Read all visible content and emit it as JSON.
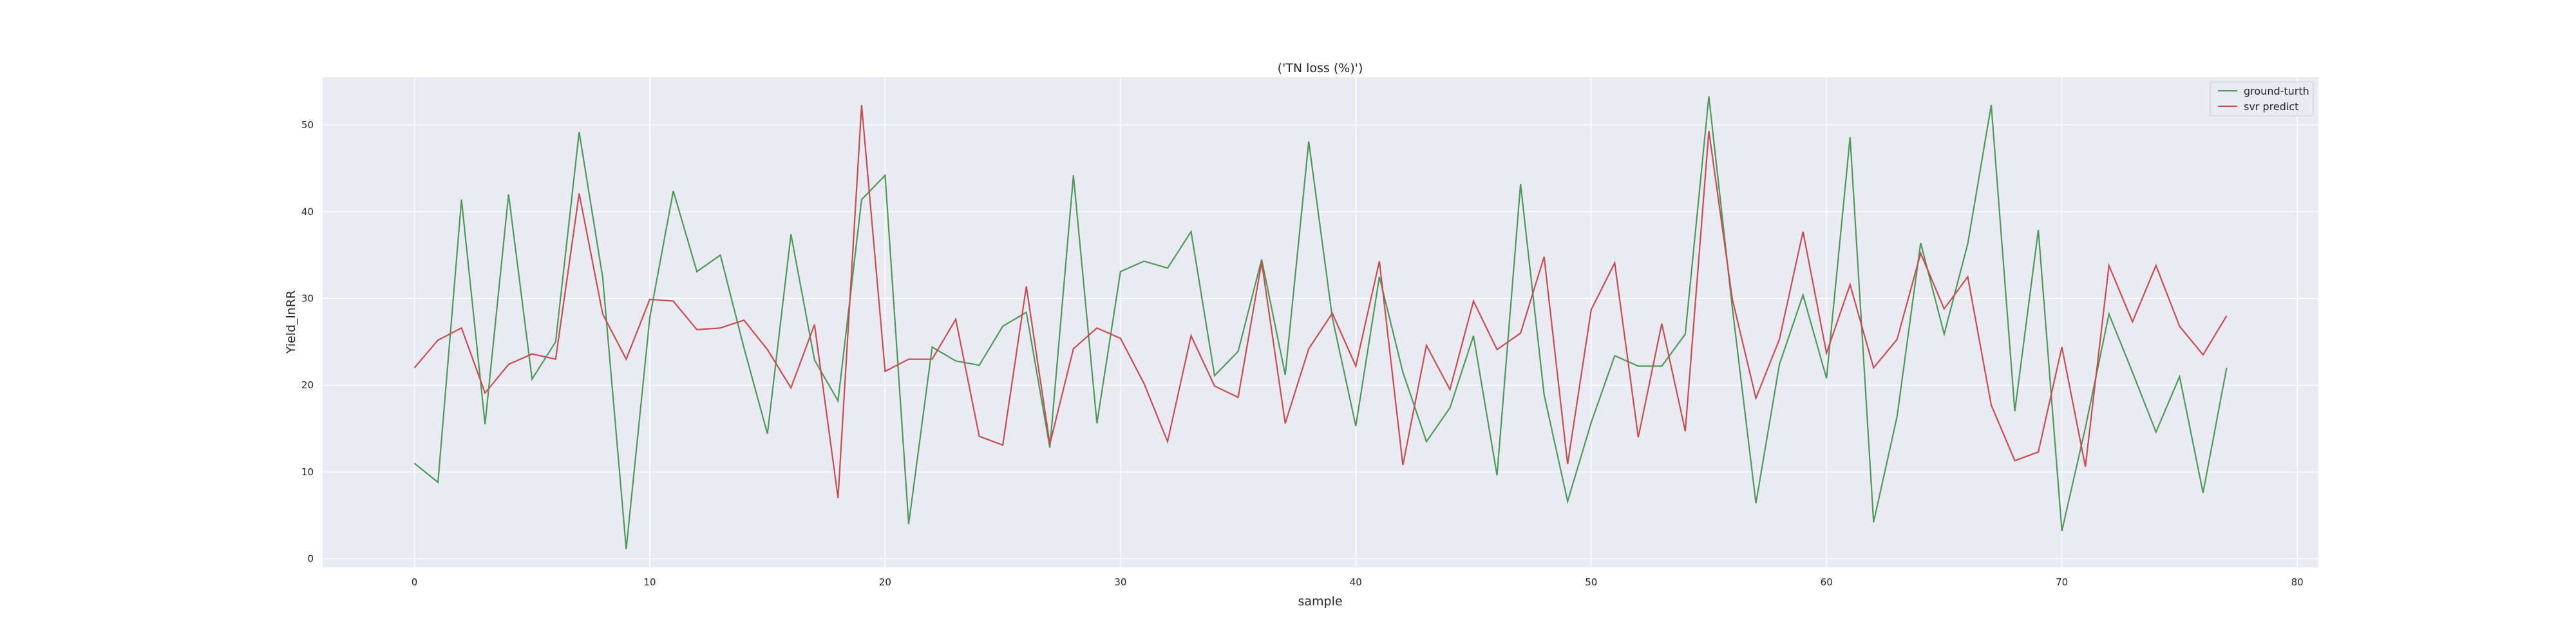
{
  "chart_data": {
    "type": "line",
    "title": "('TN loss (%)')",
    "xlabel": "sample",
    "ylabel": "Yield_lnRR",
    "xlim": [
      -3.9,
      80.9
    ],
    "ylim": [
      -1,
      55.5
    ],
    "xticks": [
      0,
      10,
      20,
      30,
      40,
      50,
      60,
      70,
      80
    ],
    "yticks": [
      0,
      10,
      20,
      30,
      40,
      50
    ],
    "grid": true,
    "legend_position": "top-right",
    "x": [
      0,
      1,
      2,
      3,
      4,
      5,
      6,
      7,
      8,
      9,
      10,
      11,
      12,
      13,
      14,
      15,
      16,
      17,
      18,
      19,
      20,
      21,
      22,
      23,
      24,
      25,
      26,
      27,
      28,
      29,
      30,
      31,
      32,
      33,
      34,
      35,
      36,
      37,
      38,
      39,
      40,
      41,
      42,
      43,
      44,
      45,
      46,
      47,
      48,
      49,
      50,
      51,
      52,
      53,
      54,
      55,
      56,
      57,
      58,
      59,
      60,
      61,
      62,
      63,
      64,
      65,
      66,
      67,
      68,
      69,
      70,
      71,
      72,
      73,
      74,
      75,
      76,
      77
    ],
    "series": [
      {
        "name": "ground-turth",
        "color": "#4c9a5b",
        "values": [
          11.0,
          8.8,
          41.4,
          15.5,
          42.0,
          20.7,
          25.0,
          49.2,
          32.4,
          1.1,
          27.8,
          42.4,
          33.1,
          35.0,
          24.3,
          14.4,
          37.4,
          22.9,
          18.2,
          41.4,
          44.2,
          4.0,
          24.4,
          22.8,
          22.3,
          26.8,
          28.4,
          12.8,
          44.2,
          15.6,
          33.1,
          34.3,
          33.5,
          37.7,
          21.1,
          23.9,
          34.5,
          21.2,
          48.1,
          27.8,
          15.3,
          32.5,
          21.5,
          13.5,
          17.4,
          25.7,
          9.6,
          43.2,
          18.9,
          6.6,
          15.7,
          23.4,
          22.2,
          22.2,
          25.9,
          53.3,
          28.9,
          6.4,
          22.4,
          30.4,
          20.8,
          48.6,
          4.2,
          16.4,
          36.4,
          25.9,
          36.3,
          52.3,
          17.0,
          37.9,
          3.2,
          15.1,
          28.2,
          21.5,
          14.6,
          21.0,
          7.6,
          22.0
        ]
      },
      {
        "name": "svr predict",
        "color": "#c44e52",
        "values": [
          22.0,
          25.2,
          26.6,
          19.1,
          22.4,
          23.6,
          23.0,
          42.1,
          28.2,
          23.0,
          29.9,
          29.7,
          26.4,
          26.6,
          27.5,
          24.1,
          19.7,
          27.0,
          7.0,
          52.3,
          21.6,
          23.0,
          23.0,
          27.6,
          14.1,
          13.1,
          31.4,
          13.2,
          24.2,
          26.6,
          25.4,
          20.2,
          13.5,
          25.7,
          19.9,
          18.6,
          34.2,
          15.6,
          24.2,
          28.3,
          22.2,
          34.3,
          10.8,
          24.6,
          19.5,
          29.7,
          24.1,
          26.0,
          34.8,
          10.9,
          28.7,
          34.1,
          14.0,
          27.1,
          14.7,
          49.3,
          29.9,
          18.5,
          25.3,
          37.7,
          23.7,
          31.6,
          22.0,
          25.3,
          35.2,
          28.8,
          32.5,
          17.7,
          11.3,
          12.3,
          24.4,
          10.6,
          33.8,
          27.3,
          33.8,
          26.8,
          23.5,
          28.0
        ]
      }
    ]
  }
}
